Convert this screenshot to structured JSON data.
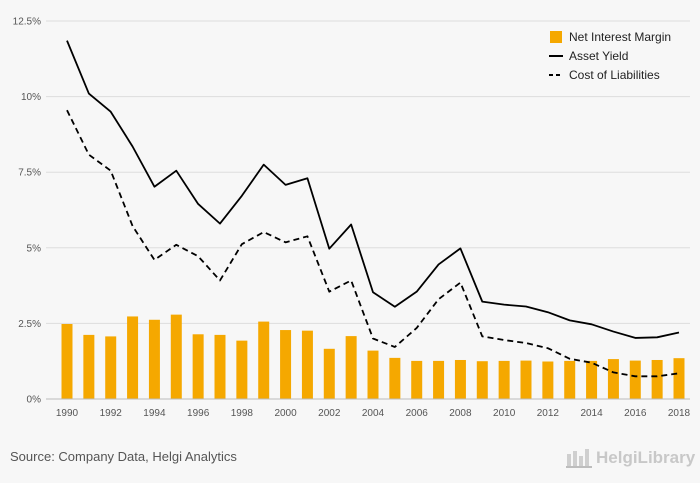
{
  "chart_data": {
    "type": "bar+line",
    "x": [
      1990,
      1991,
      1992,
      1993,
      1994,
      1995,
      1996,
      1997,
      1998,
      1999,
      2000,
      2001,
      2002,
      2003,
      2004,
      2005,
      2006,
      2007,
      2008,
      2009,
      2010,
      2011,
      2012,
      2013,
      2014,
      2015,
      2016,
      2017,
      2018
    ],
    "x_tick_labels": [
      "1990",
      "1992",
      "1994",
      "1996",
      "1998",
      "2000",
      "2002",
      "2004",
      "2006",
      "2008",
      "2010",
      "2012",
      "2014",
      "2016",
      "2018"
    ],
    "ylim": [
      0,
      12.5
    ],
    "y_ticks": [
      0,
      2.5,
      5,
      7.5,
      10,
      12.5
    ],
    "y_tick_labels": [
      "0%",
      "2.5%",
      "5%",
      "7.5%",
      "10%",
      "12.5%"
    ],
    "grid": "horizontal",
    "legend_position": "top-right",
    "series": [
      {
        "name": "Net Interest Margin",
        "kind": "bar",
        "color": "#f5a800",
        "values": [
          2.48,
          2.12,
          2.07,
          2.73,
          2.62,
          2.79,
          2.14,
          2.12,
          1.93,
          2.56,
          2.28,
          2.26,
          1.66,
          2.08,
          1.6,
          1.36,
          1.26,
          1.26,
          1.29,
          1.25,
          1.26,
          1.27,
          1.24,
          1.26,
          1.26,
          1.32,
          1.27,
          1.29,
          1.35
        ]
      },
      {
        "name": "Asset Yield",
        "kind": "line",
        "color": "#000000",
        "dash": "solid",
        "values": [
          11.85,
          10.1,
          9.5,
          8.35,
          7.02,
          7.55,
          6.45,
          5.8,
          6.72,
          7.75,
          7.08,
          7.3,
          4.97,
          5.77,
          3.53,
          3.05,
          3.55,
          4.45,
          4.98,
          3.22,
          3.12,
          3.06,
          2.87,
          2.6,
          2.47,
          2.23,
          2.02,
          2.04,
          2.2
        ]
      },
      {
        "name": "Cost of Liabilities",
        "kind": "line",
        "color": "#000000",
        "dash": "dashed",
        "values": [
          9.55,
          8.08,
          7.55,
          5.72,
          4.6,
          5.1,
          4.72,
          3.92,
          5.12,
          5.52,
          5.18,
          5.38,
          3.55,
          3.92,
          2.0,
          1.72,
          2.35,
          3.3,
          3.85,
          2.07,
          1.95,
          1.85,
          1.68,
          1.33,
          1.2,
          0.88,
          0.75,
          0.75,
          0.85
        ]
      }
    ]
  },
  "footer": {
    "source": "Source: Company Data, Helgi Analytics",
    "logo_text": "HelgiLibrary"
  },
  "colors": {
    "background": "#f7f7f7",
    "grid": "#dddddd",
    "bar": "#f5a800",
    "line": "#000000"
  }
}
